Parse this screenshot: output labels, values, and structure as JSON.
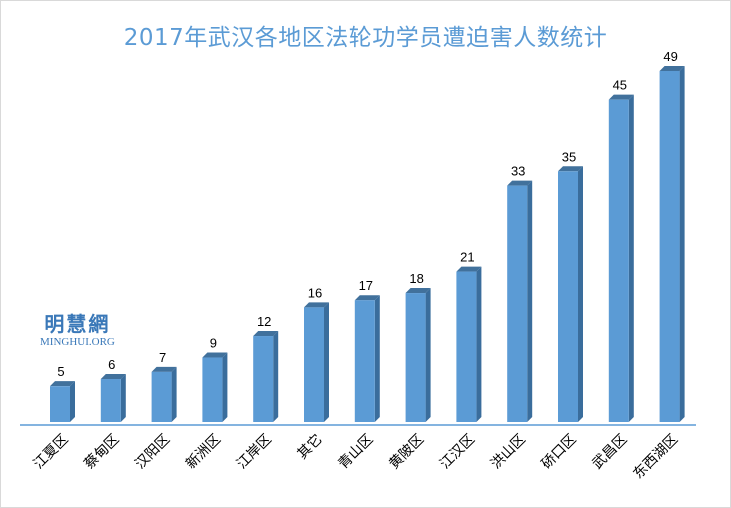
{
  "chart_data": {
    "type": "bar",
    "title": "2017年武汉各地区法轮功学员遭迫害人数统计",
    "categories": [
      "江夏区",
      "蔡甸区",
      "汉阳区",
      "新洲区",
      "江岸区",
      "其它",
      "青山区",
      "黄陂区",
      "江汉区",
      "洪山区",
      "硚口区",
      "武昌区",
      "东西湖区"
    ],
    "values": [
      5,
      6,
      7,
      9,
      12,
      16,
      17,
      18,
      21,
      33,
      35,
      45,
      49
    ],
    "xlabel": "",
    "ylabel": "",
    "ylim": [
      0,
      49
    ],
    "grid": false,
    "legend": "none",
    "bar_color": "#5b9bd5",
    "bar_side_color": "#3a6d9c",
    "bar_top_color": "#41719c",
    "title_color": "#5b9bd5"
  },
  "watermark": {
    "text": "明慧網",
    "subtext": "MINGHUI.ORG"
  }
}
